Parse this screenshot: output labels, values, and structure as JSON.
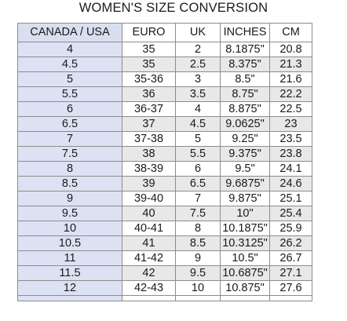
{
  "title": "WOMEN'S SIZE CONVERSION",
  "headers": [
    "CANADA / USA",
    "EURO",
    "UK",
    "INCHES",
    "CM"
  ],
  "rows": [
    [
      "4",
      "35",
      "2",
      "8.1875\"",
      "20.8"
    ],
    [
      "4.5",
      "35",
      "2.5",
      "8.375\"",
      "21.3"
    ],
    [
      "5",
      "35-36",
      "3",
      "8.5\"",
      "21.6"
    ],
    [
      "5.5",
      "36",
      "3.5",
      "8.75\"",
      "22.2"
    ],
    [
      "6",
      "36-37",
      "4",
      "8.875\"",
      "22.5"
    ],
    [
      "6.5",
      "37",
      "4.5",
      "9.0625\"",
      "23"
    ],
    [
      "7",
      "37-38",
      "5",
      "9.25\"",
      "23.5"
    ],
    [
      "7.5",
      "38",
      "5.5",
      "9.375\"",
      "23.8"
    ],
    [
      "8",
      "38-39",
      "6",
      "9.5\"",
      "24.1"
    ],
    [
      "8.5",
      "39",
      "6.5",
      "9.6875\"",
      "24.6"
    ],
    [
      "9",
      "39-40",
      "7",
      "9.875\"",
      "25.1"
    ],
    [
      "9.5",
      "40",
      "7.5",
      "10\"",
      "25.4"
    ],
    [
      "10",
      "40-41",
      "8",
      "10.1875\"",
      "25.9"
    ],
    [
      "10.5",
      "41",
      "8.5",
      "10.3125\"",
      "26.2"
    ],
    [
      "11",
      "41-42",
      "9",
      "10.5\"",
      "26.7"
    ],
    [
      "11.5",
      "42",
      "9.5",
      "10.6875\"",
      "27.1"
    ],
    [
      "12",
      "42-43",
      "10",
      "10.875\"",
      "27.6"
    ]
  ],
  "colors": {
    "canada_column": "#dce2f3",
    "shaded_row": "#e8e8e8",
    "grid": "#8c8c8c"
  }
}
